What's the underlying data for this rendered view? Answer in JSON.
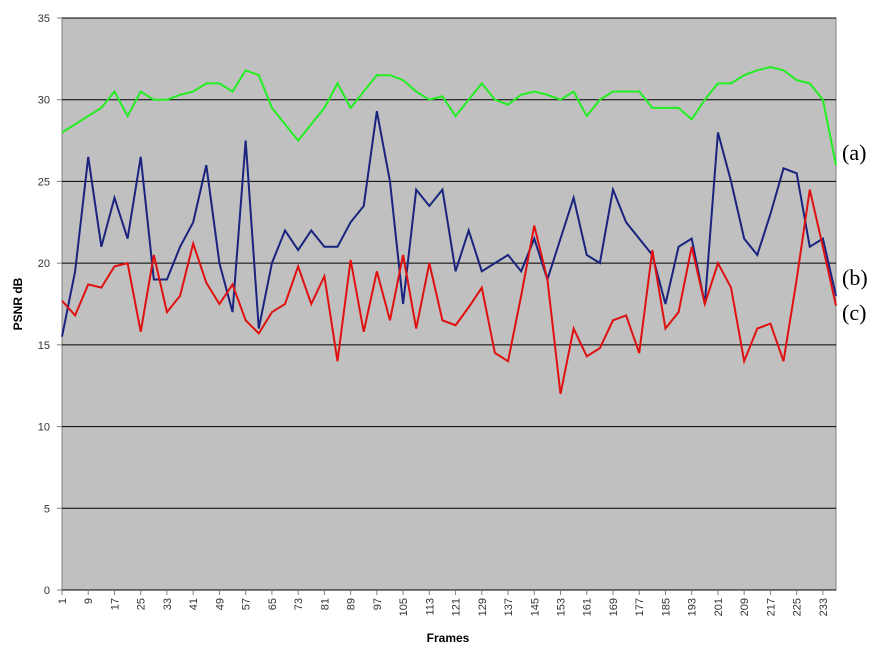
{
  "chart_data": {
    "type": "line",
    "y_label": "PSNR dB",
    "x_label": "Frames",
    "annotations": [
      "(a)",
      "(b)",
      "(c)"
    ],
    "xlim": [
      1,
      237
    ],
    "ylim": [
      0,
      35
    ],
    "xticks": [
      1,
      9,
      17,
      25,
      33,
      41,
      49,
      57,
      65,
      73,
      81,
      89,
      97,
      105,
      113,
      121,
      129,
      137,
      145,
      153,
      161,
      169,
      177,
      185,
      193,
      201,
      209,
      217,
      225,
      233
    ],
    "yticks": [
      0,
      5,
      10,
      15,
      20,
      25,
      30,
      35
    ],
    "grid": true,
    "background": "#c0c0c0",
    "x": [
      1,
      5,
      9,
      13,
      17,
      21,
      25,
      29,
      33,
      37,
      41,
      45,
      49,
      53,
      57,
      61,
      65,
      69,
      73,
      77,
      81,
      85,
      89,
      93,
      97,
      101,
      105,
      109,
      113,
      117,
      121,
      125,
      129,
      133,
      137,
      141,
      145,
      149,
      153,
      157,
      161,
      165,
      169,
      173,
      177,
      181,
      185,
      189,
      193,
      197,
      201,
      205,
      209,
      213,
      217,
      221,
      225,
      229,
      233,
      237
    ],
    "series": [
      {
        "color": "#22ee22",
        "values": [
          28,
          28.5,
          29,
          29.5,
          30.5,
          29,
          30.5,
          30,
          30,
          30.3,
          30.5,
          31,
          31,
          30.5,
          31.8,
          31.5,
          29.5,
          28.5,
          27.5,
          28.5,
          29.5,
          31,
          29.5,
          30.5,
          31.5,
          31.5,
          31.2,
          30.5,
          30,
          30.2,
          29,
          30,
          31,
          30,
          29.7,
          30.3,
          30.5,
          30.3,
          30,
          30.5,
          29,
          30,
          30.5,
          30.5,
          30.5,
          29.5,
          29.5,
          29.5,
          28.8,
          30,
          31,
          31,
          31.5,
          31.8,
          32,
          31.8,
          31.2,
          31,
          30,
          26
        ]
      },
      {
        "color": "#1a237e",
        "values": [
          15.5,
          19.5,
          26.5,
          21,
          24,
          21.5,
          26.5,
          19,
          19,
          21,
          22.5,
          26,
          20,
          17,
          27.5,
          16,
          20,
          22,
          20.8,
          22,
          21,
          21,
          22.5,
          23.5,
          29.3,
          25,
          17.5,
          24.5,
          23.5,
          24.5,
          19.5,
          22,
          19.5,
          20,
          20.5,
          19.5,
          21.5,
          19,
          21.5,
          24,
          20.5,
          20,
          24.5,
          22.5,
          21.5,
          20.5,
          17.5,
          21,
          21.5,
          17.5,
          28,
          25,
          21.5,
          20.5,
          23,
          25.8,
          25.5,
          21,
          21.5,
          18
        ]
      },
      {
        "color": "#e01010",
        "values": [
          17.7,
          16.8,
          18.7,
          18.5,
          19.8,
          20,
          15.8,
          20.5,
          17,
          18,
          21.2,
          18.8,
          17.5,
          18.7,
          16.5,
          15.7,
          17,
          17.5,
          19.8,
          17.5,
          19.2,
          14,
          20.2,
          15.8,
          19.5,
          16.5,
          20.5,
          16,
          20,
          16.5,
          16.2,
          17.3,
          18.5,
          14.5,
          14,
          18,
          22.3,
          19,
          12,
          16,
          14.3,
          14.8,
          16.5,
          16.8,
          14.5,
          20.8,
          16,
          17,
          21,
          17.5,
          20,
          18.5,
          14,
          16,
          16.3,
          14,
          19,
          24.5,
          21,
          17.4
        ]
      }
    ]
  }
}
